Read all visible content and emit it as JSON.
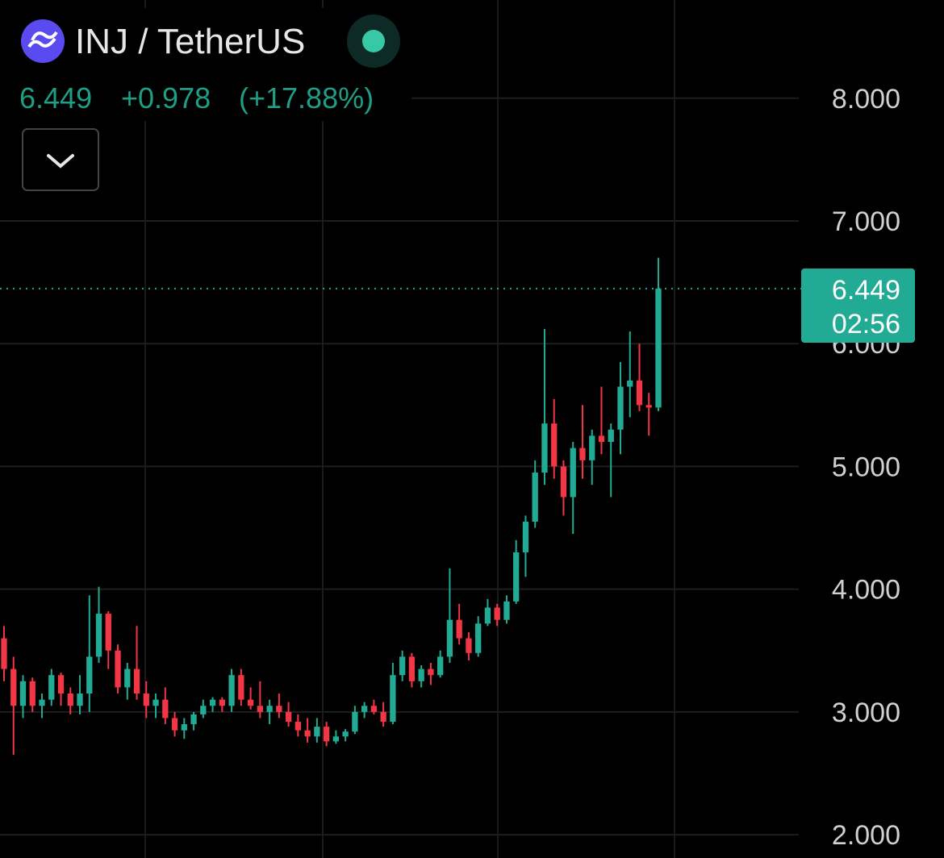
{
  "header": {
    "title": "INJ / TetherUS",
    "price": "6.449",
    "change": "+0.978",
    "change_percent": "(+17.88%)"
  },
  "chart_data": {
    "type": "candlestick",
    "up_color": "#22ab94",
    "down_color": "#f23645",
    "grid": true,
    "ylim": [
      1.81,
      8.8
    ],
    "yticks": [
      {
        "value": 2,
        "label": "2.000"
      },
      {
        "value": 3,
        "label": "3.000"
      },
      {
        "value": 4,
        "label": "4.000"
      },
      {
        "value": 5,
        "label": "5.000"
      },
      {
        "value": 6,
        "label": "6.000"
      },
      {
        "value": 7,
        "label": "7.000"
      },
      {
        "value": 8,
        "label": "8.000"
      }
    ],
    "last_price": {
      "value": 6.449,
      "label": "6.449",
      "countdown": "02:56"
    },
    "open": [
      3.6,
      3.35,
      3.05,
      3.25,
      3.05,
      3.1,
      3.3,
      3.15,
      3.05,
      3.15,
      3.45,
      3.8,
      3.5,
      3.2,
      3.35,
      3.15,
      3.05,
      3.1,
      2.95,
      2.85,
      2.9,
      2.98,
      3.05,
      3.1,
      3.05,
      3.3,
      3.1,
      3.05,
      3.0,
      3.05,
      3.0,
      2.92,
      2.85,
      2.8,
      2.88,
      2.76,
      2.8,
      2.84,
      3.0,
      3.05,
      3.0,
      2.92,
      3.3,
      3.45,
      3.25,
      3.35,
      3.3,
      3.45,
      3.75,
      3.6,
      3.48,
      3.72,
      3.85,
      3.75,
      3.9,
      4.3,
      4.55,
      4.95,
      5.35,
      5.0,
      4.75,
      5.15,
      5.05,
      5.25,
      5.2,
      5.3,
      5.65,
      5.7,
      5.5,
      5.48
    ],
    "high": [
      3.7,
      3.45,
      3.3,
      3.28,
      3.15,
      3.35,
      3.32,
      3.2,
      3.3,
      3.95,
      4.02,
      3.82,
      3.55,
      3.4,
      3.7,
      3.25,
      3.15,
      3.2,
      3.0,
      2.95,
      3.0,
      3.1,
      3.12,
      3.12,
      3.35,
      3.35,
      3.2,
      3.25,
      3.1,
      3.15,
      3.08,
      2.98,
      2.95,
      2.95,
      2.92,
      2.85,
      2.86,
      3.05,
      3.08,
      3.1,
      3.08,
      3.4,
      3.5,
      3.48,
      3.38,
      3.4,
      3.5,
      4.17,
      3.88,
      3.65,
      3.78,
      3.92,
      3.88,
      3.95,
      4.4,
      4.6,
      5.05,
      6.12,
      5.55,
      5.05,
      5.2,
      5.5,
      5.3,
      5.65,
      5.35,
      5.85,
      6.1,
      6.0,
      5.6,
      6.7
    ],
    "low": [
      3.25,
      2.65,
      2.95,
      3.0,
      2.95,
      3.05,
      3.05,
      2.98,
      2.98,
      3.0,
      3.4,
      3.35,
      3.15,
      3.1,
      3.1,
      2.95,
      2.95,
      2.9,
      2.8,
      2.78,
      2.85,
      2.95,
      3.0,
      3.0,
      3.0,
      3.05,
      3.02,
      2.95,
      2.9,
      2.95,
      2.88,
      2.8,
      2.75,
      2.75,
      2.72,
      2.74,
      2.76,
      2.82,
      2.95,
      2.98,
      2.88,
      2.9,
      3.25,
      3.2,
      3.2,
      3.22,
      3.28,
      3.4,
      3.55,
      3.42,
      3.45,
      3.7,
      3.7,
      3.72,
      3.88,
      4.1,
      4.5,
      4.85,
      4.9,
      4.6,
      4.45,
      4.9,
      4.85,
      5.1,
      4.75,
      5.1,
      5.4,
      5.45,
      5.25,
      5.45
    ],
    "close": [
      3.35,
      3.05,
      3.25,
      3.05,
      3.1,
      3.3,
      3.15,
      3.05,
      3.15,
      3.45,
      3.8,
      3.5,
      3.2,
      3.35,
      3.15,
      3.05,
      3.1,
      2.95,
      2.85,
      2.9,
      2.98,
      3.05,
      3.1,
      3.05,
      3.3,
      3.1,
      3.05,
      3.0,
      3.05,
      3.0,
      2.92,
      2.85,
      2.8,
      2.88,
      2.76,
      2.8,
      2.84,
      3.0,
      3.05,
      3.0,
      2.92,
      3.3,
      3.45,
      3.25,
      3.35,
      3.3,
      3.45,
      3.75,
      3.6,
      3.48,
      3.72,
      3.85,
      3.75,
      3.9,
      4.3,
      4.55,
      4.95,
      5.35,
      5.0,
      4.75,
      5.15,
      5.05,
      5.25,
      5.2,
      5.3,
      5.65,
      5.7,
      5.5,
      5.48,
      6.449
    ]
  }
}
